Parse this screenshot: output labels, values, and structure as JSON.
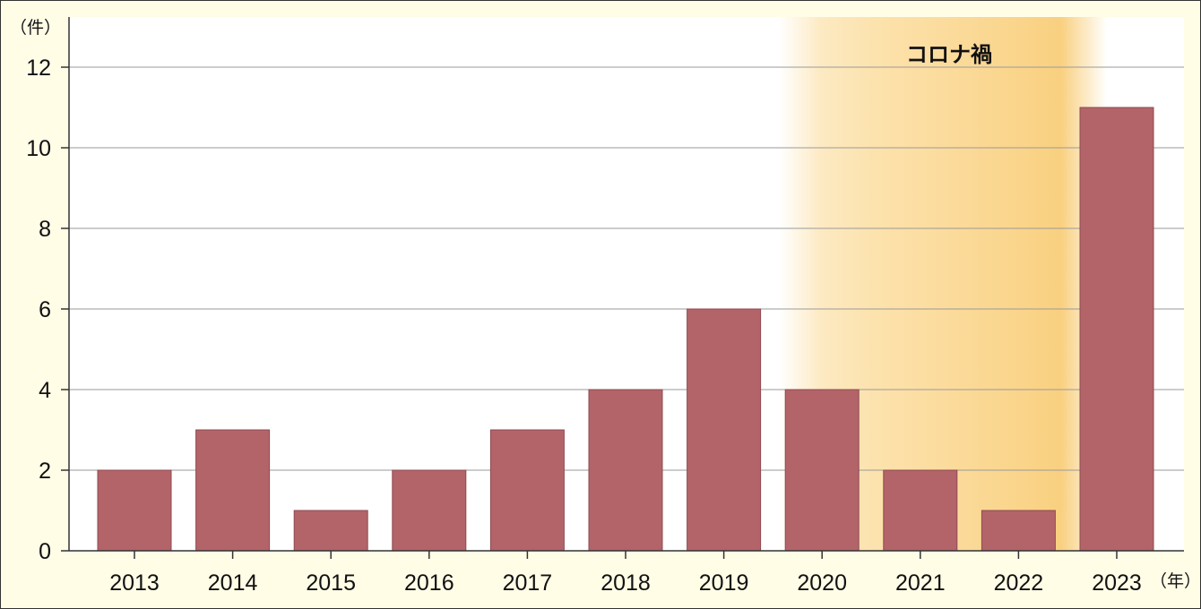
{
  "chart_data": {
    "type": "bar",
    "categories": [
      "2013",
      "2014",
      "2015",
      "2016",
      "2017",
      "2018",
      "2019",
      "2020",
      "2021",
      "2022",
      "2023"
    ],
    "values": [
      2,
      3,
      1,
      2,
      3,
      4,
      6,
      4,
      2,
      1,
      11
    ],
    "title": "",
    "xlabel": "（年）",
    "ylabel": "（件）",
    "ylim": [
      0,
      12
    ],
    "yticks": [
      0,
      2,
      4,
      6,
      8,
      10,
      12
    ],
    "grid": true,
    "legend": "none",
    "annotations": [
      {
        "text": "コロナ禍",
        "x_range": [
          "2020",
          "2022"
        ]
      }
    ],
    "colors": {
      "bar": "#b36469",
      "band": "#f9d38e",
      "background": "#fffde6",
      "plot": "#ffffff",
      "grid": "#9a9a9a",
      "axis": "#333333"
    }
  }
}
